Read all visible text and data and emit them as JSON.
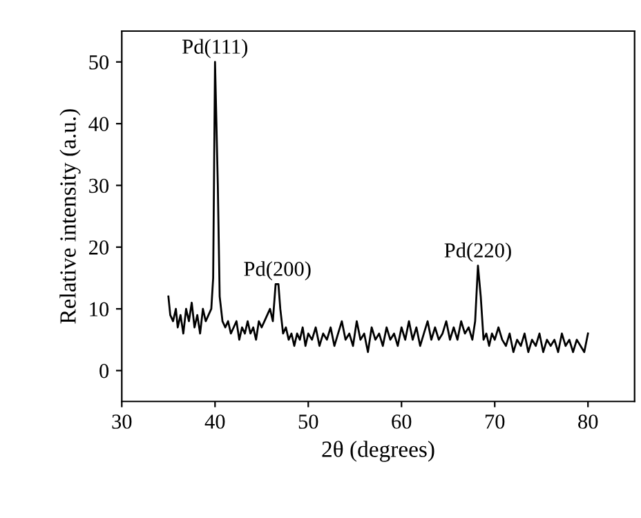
{
  "chart_data": {
    "type": "line",
    "xlabel": "2θ (degrees)",
    "ylabel": "Relative intensity (a.u.)",
    "xlim": [
      30,
      85
    ],
    "ylim": [
      -5,
      55
    ],
    "xticks": [
      30,
      40,
      50,
      60,
      70,
      80
    ],
    "yticks": [
      0,
      10,
      20,
      30,
      40,
      50
    ],
    "grid": false,
    "legend": false,
    "marker": "none",
    "line_style": "solid",
    "annotations": [
      {
        "text": "Pd(111)",
        "x": 40.0,
        "y": 50
      },
      {
        "text": "Pd(200)",
        "x": 46.7,
        "y": 14
      },
      {
        "text": "Pd(220)",
        "x": 68.2,
        "y": 17
      }
    ],
    "series": [
      {
        "color": "#000000",
        "x": [
          35.0,
          35.2,
          35.5,
          35.8,
          36.0,
          36.3,
          36.6,
          36.9,
          37.2,
          37.5,
          37.8,
          38.1,
          38.4,
          38.7,
          39.0,
          39.3,
          39.6,
          39.8,
          40.0,
          40.3,
          40.5,
          40.8,
          41.1,
          41.4,
          41.7,
          42.0,
          42.3,
          42.6,
          42.9,
          43.2,
          43.5,
          43.8,
          44.1,
          44.4,
          44.7,
          45.0,
          45.3,
          45.6,
          45.9,
          46.2,
          46.5,
          46.8,
          47.0,
          47.3,
          47.6,
          47.9,
          48.2,
          48.5,
          48.8,
          49.1,
          49.4,
          49.7,
          50.0,
          50.4,
          50.8,
          51.2,
          51.6,
          52.0,
          52.4,
          52.8,
          53.2,
          53.6,
          54.0,
          54.4,
          54.8,
          55.2,
          55.6,
          56.0,
          56.4,
          56.8,
          57.2,
          57.6,
          58.0,
          58.4,
          58.8,
          59.2,
          59.6,
          60.0,
          60.4,
          60.8,
          61.2,
          61.6,
          62.0,
          62.4,
          62.8,
          63.2,
          63.6,
          64.0,
          64.4,
          64.8,
          65.2,
          65.6,
          66.0,
          66.4,
          66.8,
          67.2,
          67.6,
          67.9,
          68.2,
          68.5,
          68.8,
          69.1,
          69.4,
          69.7,
          70.0,
          70.4,
          70.8,
          71.2,
          71.6,
          72.0,
          72.4,
          72.8,
          73.2,
          73.6,
          74.0,
          74.4,
          74.8,
          75.2,
          75.6,
          76.0,
          76.4,
          76.8,
          77.2,
          77.6,
          78.0,
          78.4,
          78.8,
          79.2,
          79.6,
          80.0
        ],
        "values": [
          12,
          9,
          8,
          10,
          7,
          9,
          6,
          10,
          8,
          11,
          7,
          9,
          6,
          10,
          8,
          9,
          10,
          15,
          50,
          30,
          12,
          8,
          7,
          8,
          6,
          7,
          8,
          5,
          7,
          6,
          8,
          6,
          7,
          5,
          8,
          7,
          8,
          9,
          10,
          8,
          14,
          14,
          10,
          6,
          7,
          5,
          6,
          4,
          6,
          5,
          7,
          4,
          6,
          5,
          7,
          4,
          6,
          5,
          7,
          4,
          6,
          8,
          5,
          6,
          4,
          8,
          5,
          6,
          3,
          7,
          5,
          6,
          4,
          7,
          5,
          6,
          4,
          7,
          5,
          8,
          5,
          7,
          4,
          6,
          8,
          5,
          7,
          5,
          6,
          8,
          5,
          7,
          5,
          8,
          6,
          7,
          5,
          8,
          17,
          12,
          5,
          6,
          4,
          6,
          5,
          7,
          5,
          4,
          6,
          3,
          5,
          4,
          6,
          3,
          5,
          4,
          6,
          3,
          5,
          4,
          5,
          3,
          6,
          4,
          5,
          3,
          5,
          4,
          3,
          6
        ]
      }
    ]
  }
}
